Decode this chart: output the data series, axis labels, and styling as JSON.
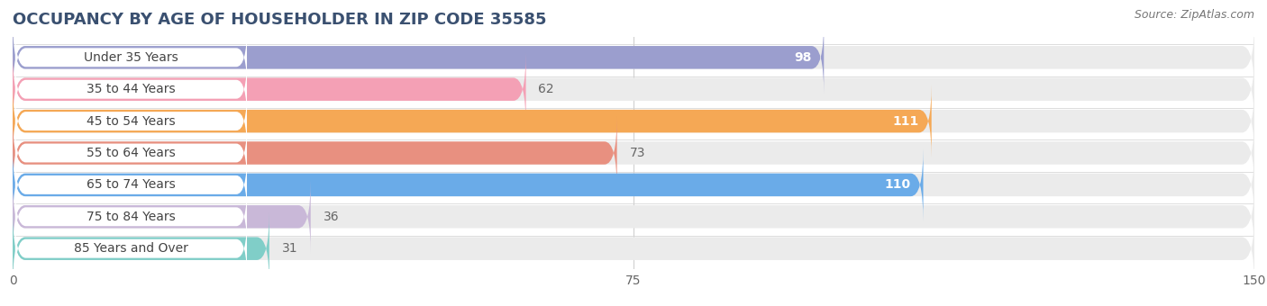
{
  "title": "OCCUPANCY BY AGE OF HOUSEHOLDER IN ZIP CODE 35585",
  "source": "Source: ZipAtlas.com",
  "categories": [
    "Under 35 Years",
    "35 to 44 Years",
    "45 to 54 Years",
    "55 to 64 Years",
    "65 to 74 Years",
    "75 to 84 Years",
    "85 Years and Over"
  ],
  "values": [
    98,
    62,
    111,
    73,
    110,
    36,
    31
  ],
  "bar_colors": [
    "#9b9ece",
    "#f4a0b5",
    "#f5a855",
    "#e89080",
    "#6aabe8",
    "#c9b8d8",
    "#80cec8"
  ],
  "bar_bg_color": "#ebebeb",
  "xlim": [
    0,
    150
  ],
  "xticks": [
    0,
    75,
    150
  ],
  "value_label_color_inside": "#ffffff",
  "value_label_color_outside": "#666666",
  "title_fontsize": 13,
  "source_fontsize": 9,
  "label_fontsize": 10,
  "tick_fontsize": 10,
  "bar_height": 0.72,
  "background_color": "#ffffff",
  "title_color": "#3a5070",
  "grid_color": "#d0d0d0",
  "inside_threshold": 75
}
